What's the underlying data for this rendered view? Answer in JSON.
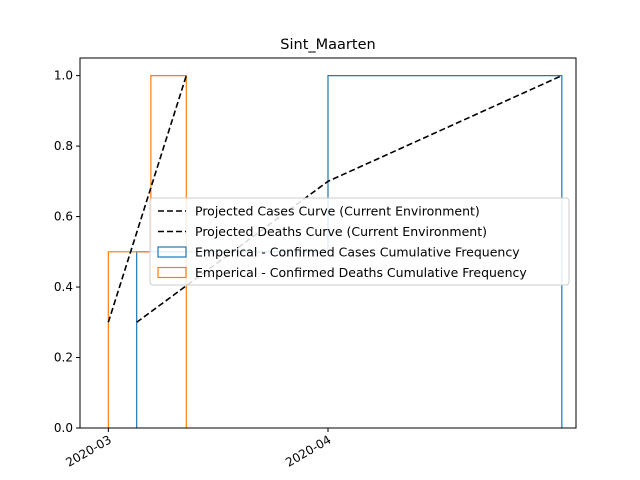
{
  "chart_data": {
    "type": "histogram-step-with-lines",
    "title": "Sint_Maarten",
    "xlabel": "",
    "ylabel": "",
    "x_axis_type": "date",
    "xlim": [
      "2020-02-26",
      "2020-05-06"
    ],
    "ylim": [
      0,
      1.05
    ],
    "x_ticks": [
      {
        "date": "2020-03-01",
        "label": "2020-03"
      },
      {
        "date": "2020-04-01",
        "label": "2020-04"
      }
    ],
    "y_ticks": [
      0.0,
      0.2,
      0.4,
      0.6,
      0.8,
      1.0
    ],
    "y_tick_labels": [
      "0.0",
      "0.2",
      "0.4",
      "0.6",
      "0.8",
      "1.0"
    ],
    "grid": false,
    "legend_position": "center-right",
    "series": [
      {
        "name": "Projected Cases Curve (Current Environment)",
        "kind": "line",
        "style": "dashed",
        "color": "#000000",
        "x": [
          "2020-03-05",
          "2020-04-01",
          "2020-05-04"
        ],
        "y": [
          0.3,
          0.7,
          1.0
        ]
      },
      {
        "name": "Projected Deaths Curve (Current Environment)",
        "kind": "line",
        "style": "dashed",
        "color": "#000000",
        "x": [
          "2020-03-01",
          "2020-03-12"
        ],
        "y": [
          0.3,
          1.0
        ]
      },
      {
        "name": "Emperical - Confirmed Cases Cumulative Frequency",
        "kind": "step",
        "color": "#1f77b4",
        "edges": [
          "2020-03-05",
          "2020-04-01",
          "2020-05-04"
        ],
        "values": [
          0.5,
          1.0
        ]
      },
      {
        "name": "Emperical - Confirmed Deaths Cumulative Frequency",
        "kind": "step",
        "color": "#ff7f0e",
        "edges": [
          "2020-03-01",
          "2020-03-07",
          "2020-03-12"
        ],
        "values": [
          0.5,
          1.0
        ]
      }
    ]
  }
}
